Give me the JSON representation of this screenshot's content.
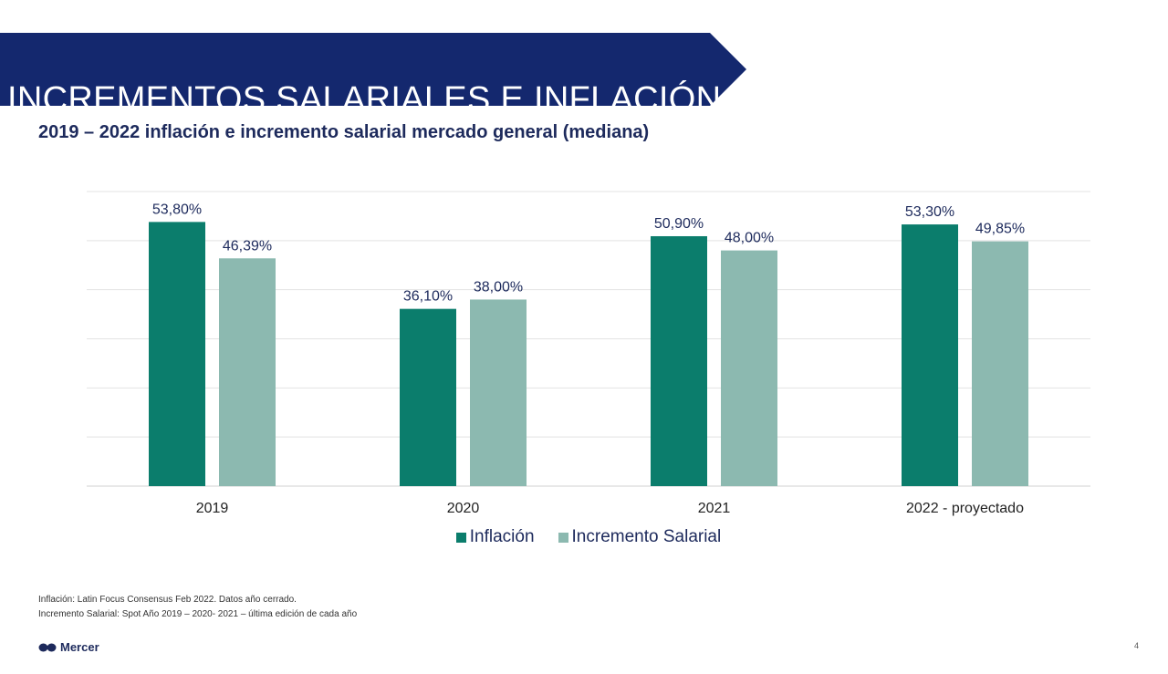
{
  "title": "INCREMENTOS SALARIALES E INFLACIÓN",
  "subtitle": "2019 – 2022 inflación e incremento salarial mercado general (mediana)",
  "colors": {
    "banner": "#14286e",
    "inflacion": "#0b7d6c",
    "incremento": "#8cb9b0",
    "text": "#1d2a5c"
  },
  "chart_data": {
    "type": "bar",
    "categories": [
      "2019",
      "2020",
      "2021",
      "2022 - proyectado"
    ],
    "series": [
      {
        "name": "Inflación",
        "values": [
          53.8,
          36.1,
          50.9,
          53.3
        ],
        "labels": [
          "53,80%",
          "36,10%",
          "50,90%",
          "53,30%"
        ]
      },
      {
        "name": "Incremento Salarial",
        "values": [
          46.39,
          38.0,
          48.0,
          49.85
        ],
        "labels": [
          "46,39%",
          "38,00%",
          "48,00%",
          "49,85%"
        ]
      }
    ],
    "ylim": [
      0,
      60
    ],
    "grid": true,
    "legend": "bottom"
  },
  "footnotes": [
    "Inflación: Latin Focus Consensus Feb 2022. Datos año cerrado.",
    "Incremento Salarial: Spot Año 2019 – 2020- 2021 – última edición de cada año"
  ],
  "logo": "Mercer",
  "page_number": "4"
}
